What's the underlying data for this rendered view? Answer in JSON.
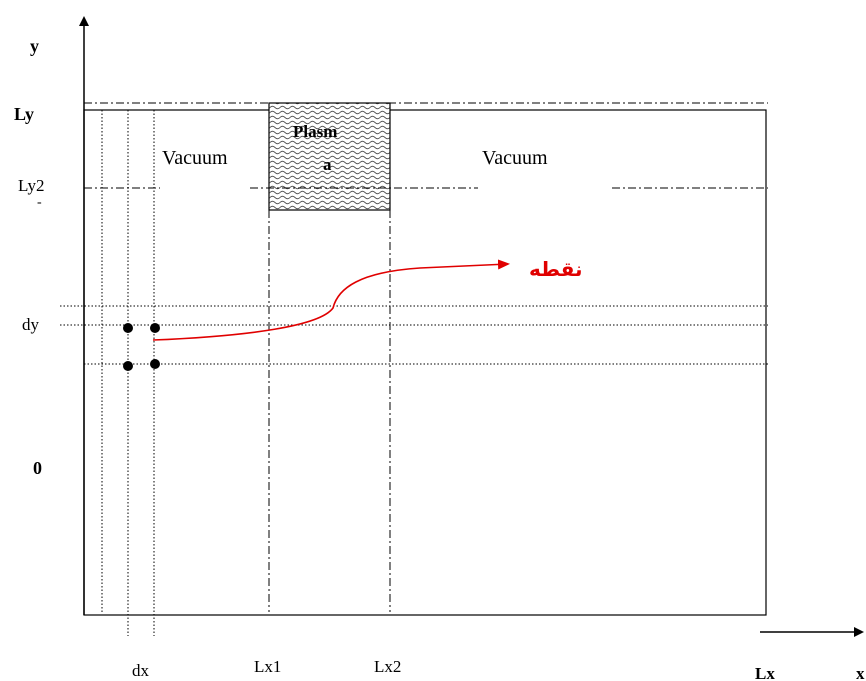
{
  "axes": {
    "y_label": "y",
    "x_label": "x",
    "ly_label": "Ly",
    "ly2_label": "Ly2",
    "ly2_mark": "-",
    "zero_label": "0",
    "dy_label": "dy",
    "dx_label": "dx",
    "lx1_label": "Lx1",
    "lx2_label": "Lx2",
    "lx_label": "Lx"
  },
  "regions": {
    "vacuum_left": "Vacuum",
    "vacuum_right": "Vacuum",
    "plasma_line1": "Plasm",
    "plasma_line2": "a"
  },
  "annotation": {
    "point_label": "نقطه",
    "color": "#e00000"
  }
}
